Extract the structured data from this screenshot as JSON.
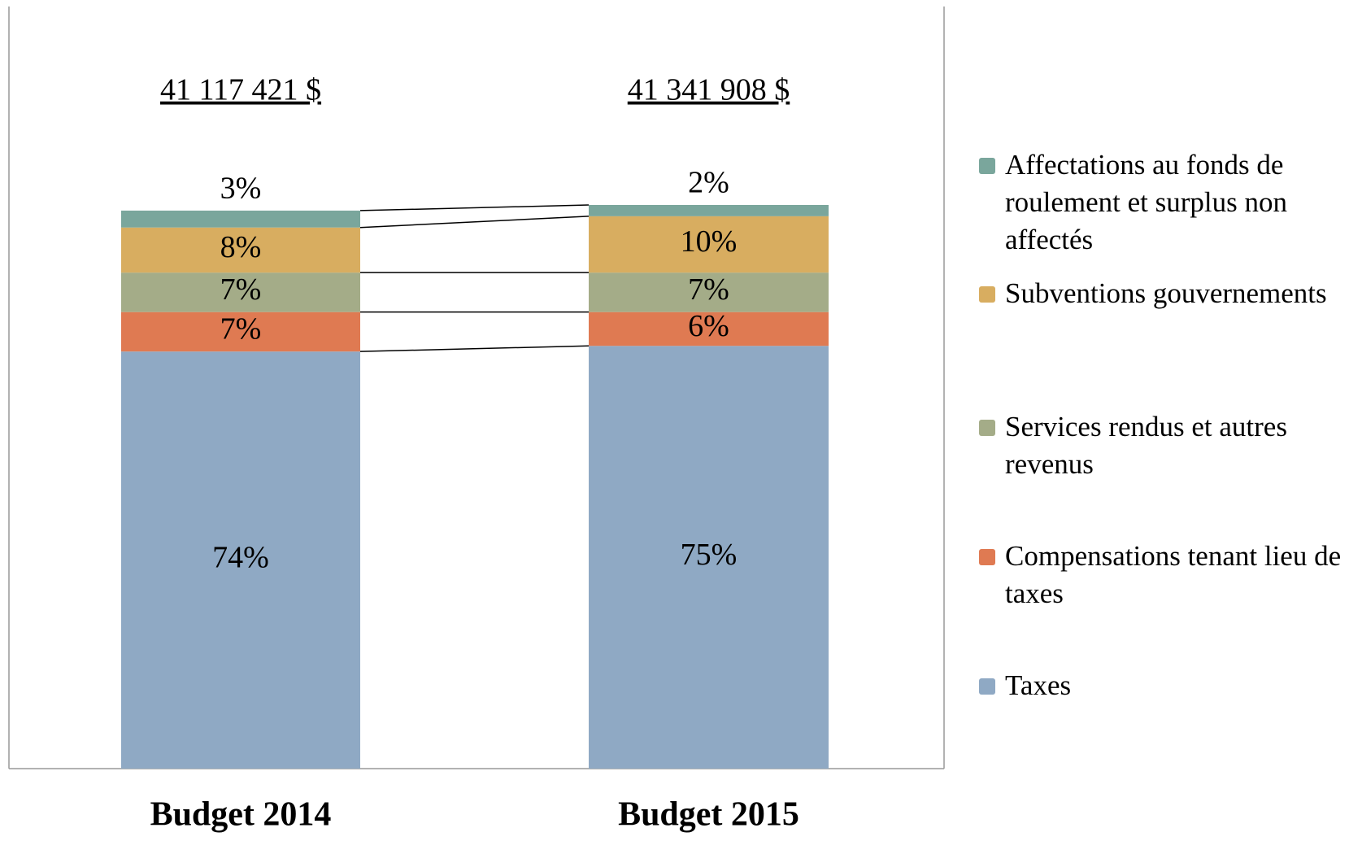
{
  "chart_data": {
    "type": "stacked_bar_percent",
    "categories": [
      "Budget 2014",
      "Budget 2015"
    ],
    "annotations": [
      "41 117 421 $",
      "41 341 908 $"
    ],
    "ylim": [
      0,
      100
    ],
    "legend": "right",
    "series": [
      {
        "name": "Taxes",
        "color": "#8fa9c4",
        "values": [
          74,
          75
        ],
        "value_labels": [
          "74%",
          "75%"
        ]
      },
      {
        "name": "Compensations tenant lieu de taxes",
        "color": "#df7a52",
        "values": [
          7,
          6
        ],
        "value_labels": [
          "7%",
          "6%"
        ]
      },
      {
        "name": "Services rendus et autres revenus",
        "color": "#a4ac88",
        "values": [
          7,
          7
        ],
        "value_labels": [
          "7%",
          "7%"
        ]
      },
      {
        "name": "Subventions gouvernements",
        "color": "#d8ad60",
        "values": [
          8,
          10
        ],
        "value_labels": [
          "8%",
          "10%"
        ]
      },
      {
        "name": "Affectations au fonds de roulement et surplus non affectés",
        "color": "#7aa69c",
        "values": [
          3,
          2
        ],
        "value_labels": [
          "3%",
          "2%"
        ]
      }
    ]
  }
}
